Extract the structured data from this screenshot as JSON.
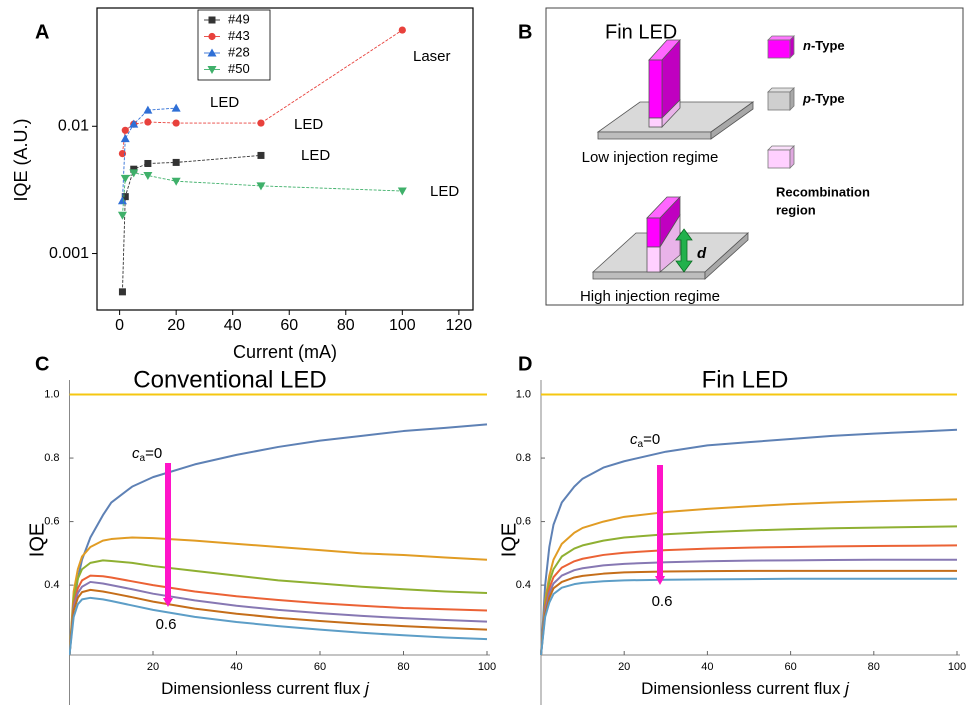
{
  "chart_data": [
    {
      "type": "line",
      "panel_label": "A",
      "ylabel": "IQE (A.U.)",
      "xlabel": "Current (mA)",
      "xlim": [
        -8,
        125
      ],
      "ylim": [
        0.00036,
        0.085
      ],
      "yscale": "log",
      "frame": true,
      "line_style": "dashed",
      "xticks": [
        0,
        20,
        40,
        60,
        80,
        100,
        120
      ],
      "yticks": [
        0.001,
        0.01
      ],
      "legend": "upper center",
      "annotations": [
        "Laser",
        "LED",
        "LED",
        "LED",
        "LED"
      ],
      "series": [
        {
          "name": "#49",
          "color": "#333333",
          "marker": "square",
          "x": [
            1,
            2,
            5,
            10,
            20,
            50
          ],
          "values": [
            0.0005,
            0.0028,
            0.0046,
            0.0051,
            0.0052,
            0.0059
          ]
        },
        {
          "name": "#43",
          "color": "#e8413c",
          "marker": "circle",
          "x": [
            1,
            2,
            5,
            10,
            20,
            50,
            100
          ],
          "values": [
            0.0061,
            0.0093,
            0.0104,
            0.0108,
            0.0106,
            0.0106,
            0.057
          ]
        },
        {
          "name": "#28",
          "color": "#2f6fd6",
          "marker": "triangle-up",
          "x": [
            1,
            2,
            5,
            10,
            20
          ],
          "values": [
            0.0026,
            0.008,
            0.0104,
            0.0134,
            0.0139
          ]
        },
        {
          "name": "#50",
          "color": "#3fb06a",
          "marker": "triangle-down",
          "x": [
            1,
            2,
            5,
            10,
            20,
            50,
            100
          ],
          "values": [
            0.002,
            0.0039,
            0.0043,
            0.0041,
            0.0037,
            0.0034,
            0.0031
          ]
        }
      ]
    },
    {
      "type": "line",
      "panel_label": "C",
      "title": "Conventional LED",
      "ylabel": "IQE",
      "xlabel": "Dimensionless current flux",
      "xlabel_var": "j",
      "x": [
        0,
        1,
        2,
        3,
        5,
        8,
        10,
        15,
        20,
        30,
        40,
        50,
        60,
        70,
        80,
        90,
        100
      ],
      "xlim": [
        0,
        100
      ],
      "ylim": [
        0.18,
        1.03
      ],
      "xticks": [
        20,
        40,
        60,
        80,
        100
      ],
      "yticks": [
        0.4,
        0.6,
        0.8,
        {
          "value": 1,
          "label": "1.0"
        }
      ],
      "curve_label": {
        "base": "c",
        "sub": "a",
        "rest": "=0"
      },
      "arrow_end_label": "0.6",
      "arrow_color": "#ff14c8",
      "series": [
        {
          "color": "#f5c710",
          "values": [
            1,
            1,
            1,
            1,
            1,
            1,
            1,
            1,
            1,
            1,
            1,
            1,
            1,
            1,
            1,
            1,
            1
          ]
        },
        {
          "color": "#5e81b5",
          "values": [
            0.18,
            0.33,
            0.42,
            0.48,
            0.55,
            0.62,
            0.66,
            0.71,
            0.74,
            0.78,
            0.81,
            0.835,
            0.855,
            0.87,
            0.885,
            0.895,
            0.906
          ]
        },
        {
          "color": "#e19c24",
          "values": [
            0.18,
            0.38,
            0.45,
            0.49,
            0.52,
            0.54,
            0.545,
            0.55,
            0.548,
            0.54,
            0.53,
            0.52,
            0.51,
            0.5,
            0.495,
            0.487,
            0.48
          ]
        },
        {
          "color": "#8fb032",
          "values": [
            0.18,
            0.36,
            0.42,
            0.45,
            0.47,
            0.478,
            0.476,
            0.47,
            0.46,
            0.445,
            0.43,
            0.415,
            0.405,
            0.395,
            0.387,
            0.38,
            0.375
          ]
        },
        {
          "color": "#eb6235",
          "values": [
            0.18,
            0.34,
            0.39,
            0.415,
            0.43,
            0.428,
            0.424,
            0.412,
            0.4,
            0.38,
            0.365,
            0.353,
            0.343,
            0.335,
            0.328,
            0.324,
            0.32
          ]
        },
        {
          "color": "#8778b3",
          "values": [
            0.18,
            0.33,
            0.375,
            0.395,
            0.41,
            0.405,
            0.4,
            0.387,
            0.373,
            0.352,
            0.335,
            0.322,
            0.312,
            0.303,
            0.296,
            0.29,
            0.285
          ]
        },
        {
          "color": "#c56e1a",
          "values": [
            0.18,
            0.32,
            0.36,
            0.378,
            0.385,
            0.38,
            0.375,
            0.362,
            0.348,
            0.326,
            0.31,
            0.297,
            0.287,
            0.278,
            0.271,
            0.265,
            0.26
          ]
        },
        {
          "color": "#5d9ec7",
          "values": [
            0.18,
            0.3,
            0.34,
            0.355,
            0.36,
            0.355,
            0.35,
            0.336,
            0.322,
            0.3,
            0.284,
            0.271,
            0.26,
            0.25,
            0.242,
            0.235,
            0.23
          ]
        }
      ]
    },
    {
      "type": "line",
      "panel_label": "D",
      "title": "Fin LED",
      "ylabel": "IQE",
      "xlabel": "Dimensionless current flux",
      "xlabel_var": "j",
      "x": [
        0,
        1,
        2,
        3,
        5,
        8,
        10,
        15,
        20,
        30,
        40,
        50,
        60,
        70,
        80,
        90,
        100
      ],
      "xlim": [
        0,
        100
      ],
      "ylim": [
        0.18,
        1.03
      ],
      "xticks": [
        20,
        40,
        60,
        80,
        100
      ],
      "yticks": [
        0.4,
        0.6,
        0.8,
        {
          "value": 1,
          "label": "1.0"
        }
      ],
      "curve_label": {
        "base": "c",
        "sub": "a",
        "rest": "=0"
      },
      "arrow_end_label": "0.6",
      "arrow_color": "#ff14c8",
      "series": [
        {
          "color": "#f5c710",
          "values": [
            1,
            1,
            1,
            1,
            1,
            1,
            1,
            1,
            1,
            1,
            1,
            1,
            1,
            1,
            1,
            1,
            1
          ]
        },
        {
          "color": "#5e81b5",
          "values": [
            0.18,
            0.4,
            0.52,
            0.59,
            0.66,
            0.71,
            0.735,
            0.77,
            0.79,
            0.82,
            0.84,
            0.85,
            0.86,
            0.87,
            0.877,
            0.883,
            0.889
          ]
        },
        {
          "color": "#e19c24",
          "values": [
            0.18,
            0.35,
            0.43,
            0.48,
            0.53,
            0.565,
            0.58,
            0.6,
            0.615,
            0.63,
            0.64,
            0.648,
            0.655,
            0.66,
            0.664,
            0.667,
            0.67
          ]
        },
        {
          "color": "#8fb032",
          "values": [
            0.18,
            0.34,
            0.41,
            0.45,
            0.49,
            0.515,
            0.525,
            0.54,
            0.55,
            0.56,
            0.567,
            0.572,
            0.576,
            0.579,
            0.581,
            0.583,
            0.585
          ]
        },
        {
          "color": "#eb6235",
          "values": [
            0.18,
            0.33,
            0.39,
            0.425,
            0.455,
            0.475,
            0.483,
            0.495,
            0.502,
            0.51,
            0.515,
            0.518,
            0.52,
            0.522,
            0.523,
            0.524,
            0.525
          ]
        },
        {
          "color": "#8778b3",
          "values": [
            0.18,
            0.32,
            0.375,
            0.405,
            0.43,
            0.447,
            0.453,
            0.462,
            0.467,
            0.472,
            0.475,
            0.477,
            0.478,
            0.479,
            0.48,
            0.48,
            0.48
          ]
        },
        {
          "color": "#c56e1a",
          "values": [
            0.18,
            0.31,
            0.36,
            0.39,
            0.41,
            0.424,
            0.429,
            0.436,
            0.44,
            0.443,
            0.444,
            0.445,
            0.445,
            0.445,
            0.445,
            0.445,
            0.445
          ]
        },
        {
          "color": "#5d9ec7",
          "values": [
            0.18,
            0.3,
            0.345,
            0.372,
            0.392,
            0.403,
            0.407,
            0.412,
            0.415,
            0.417,
            0.418,
            0.419,
            0.42,
            0.42,
            0.42,
            0.42,
            0.42
          ]
        }
      ]
    }
  ],
  "diagram": {
    "panel_label": "B",
    "title": "Fin LED",
    "low": "Low injection regime",
    "high": "High injection regime",
    "distance": "d",
    "legend": [
      {
        "var": "n",
        "rest": "-Type"
      },
      {
        "var": "p",
        "rest": "-Type"
      },
      {
        "line1": "Recombination",
        "line2": "region"
      }
    ]
  }
}
